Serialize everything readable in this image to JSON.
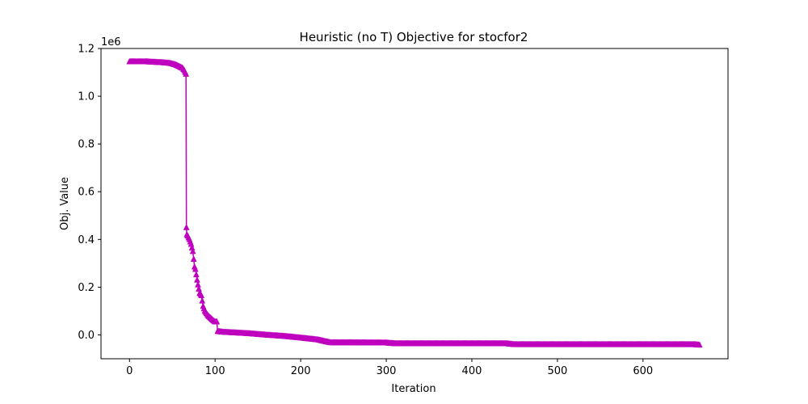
{
  "chart_data": {
    "type": "line",
    "title": "Heuristic (no T) Objective for stocfor2",
    "xlabel": "Iteration",
    "ylabel": "Obj. Value",
    "y_offset_label": "1e6",
    "xlim": [
      -33.3,
      699.3
    ],
    "ylim": [
      -100000,
      1200000
    ],
    "x_ticks": [
      0,
      100,
      200,
      300,
      400,
      500,
      600
    ],
    "y_ticks": [
      0,
      200000,
      400000,
      600000,
      800000,
      1000000,
      1200000
    ],
    "y_tick_labels": [
      "0.0",
      "0.2",
      "0.4",
      "0.6",
      "0.8",
      "1.0",
      "1.2"
    ],
    "grid": false,
    "series": [
      {
        "color": "#bf00bf",
        "marker": "triangle-up",
        "points": [
          [
            0,
            1145000
          ],
          [
            10,
            1145000
          ],
          [
            20,
            1145000
          ],
          [
            30,
            1143000
          ],
          [
            40,
            1141000
          ],
          [
            48,
            1138000
          ],
          [
            54,
            1132000
          ],
          [
            58,
            1125000
          ],
          [
            62,
            1118000
          ],
          [
            64,
            1108000
          ],
          [
            66,
            1093000
          ],
          [
            66.5,
            450000
          ],
          [
            67,
            420000
          ],
          [
            68,
            415000
          ],
          [
            70,
            400000
          ],
          [
            72,
            380000
          ],
          [
            74,
            350000
          ],
          [
            76,
            285000
          ],
          [
            77,
            275000
          ],
          [
            79,
            230000
          ],
          [
            80,
            210000
          ],
          [
            82,
            175000
          ],
          [
            84,
            165000
          ],
          [
            86,
            120000
          ],
          [
            88,
            100000
          ],
          [
            90,
            90000
          ],
          [
            92,
            80000
          ],
          [
            95,
            70000
          ],
          [
            98,
            60000
          ],
          [
            100,
            55000
          ],
          [
            102,
            55000
          ],
          [
            103,
            15000
          ],
          [
            110,
            12000
          ],
          [
            120,
            10000
          ],
          [
            140,
            6000
          ],
          [
            160,
            0
          ],
          [
            180,
            -5000
          ],
          [
            200,
            -12000
          ],
          [
            220,
            -20000
          ],
          [
            230,
            -28000
          ],
          [
            235,
            -32000
          ],
          [
            260,
            -32000
          ],
          [
            300,
            -33000
          ],
          [
            310,
            -36000
          ],
          [
            350,
            -36000
          ],
          [
            400,
            -36000
          ],
          [
            440,
            -36000
          ],
          [
            450,
            -40000
          ],
          [
            500,
            -40000
          ],
          [
            550,
            -40000
          ],
          [
            600,
            -40000
          ],
          [
            640,
            -40000
          ],
          [
            660,
            -40000
          ],
          [
            666,
            -42000
          ]
        ]
      }
    ]
  }
}
